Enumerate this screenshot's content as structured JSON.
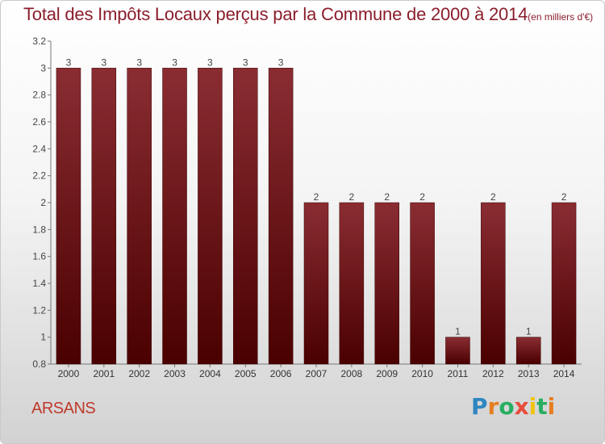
{
  "chart_data": {
    "type": "bar",
    "title": "Total des Impôts Locaux perçus par la Commune de 2000 à 2014",
    "unit_label": "(en milliers d'€)",
    "categories": [
      "2000",
      "2001",
      "2002",
      "2003",
      "2004",
      "2005",
      "2006",
      "2007",
      "2008",
      "2009",
      "2010",
      "2011",
      "2012",
      "2013",
      "2014"
    ],
    "values": [
      3,
      3,
      3,
      3,
      3,
      3,
      3,
      2,
      2,
      2,
      2,
      1,
      2,
      1,
      2
    ],
    "data_labels": [
      "3",
      "3",
      "3",
      "3",
      "3",
      "3",
      "3",
      "2",
      "2",
      "2",
      "2",
      "1",
      "2",
      "1",
      "2"
    ],
    "ylim": [
      0.8,
      3.2
    ],
    "yticks": [
      0.8,
      1,
      1.2,
      1.4,
      1.6,
      1.8,
      2,
      2.2,
      2.4,
      2.6,
      2.8,
      3,
      3.2
    ],
    "ytick_labels": [
      "0.8",
      "1",
      "1.2",
      "1.4",
      "1.6",
      "1.8",
      "2",
      "2.2",
      "2.4",
      "2.6",
      "2.8",
      "3",
      "3.2"
    ],
    "grid": false,
    "xlabel": "",
    "ylabel": "",
    "bar_color": "#7a1a22"
  },
  "commune": "ARSANS",
  "brand": {
    "letters": [
      "P",
      "r",
      "o",
      "x",
      "i",
      "t",
      "i"
    ],
    "colors": [
      "#2e86c1",
      "#e67e22",
      "#27ae60",
      "#e74c3c",
      "#f1c40f",
      "#27ae60",
      "#e67e22"
    ]
  }
}
